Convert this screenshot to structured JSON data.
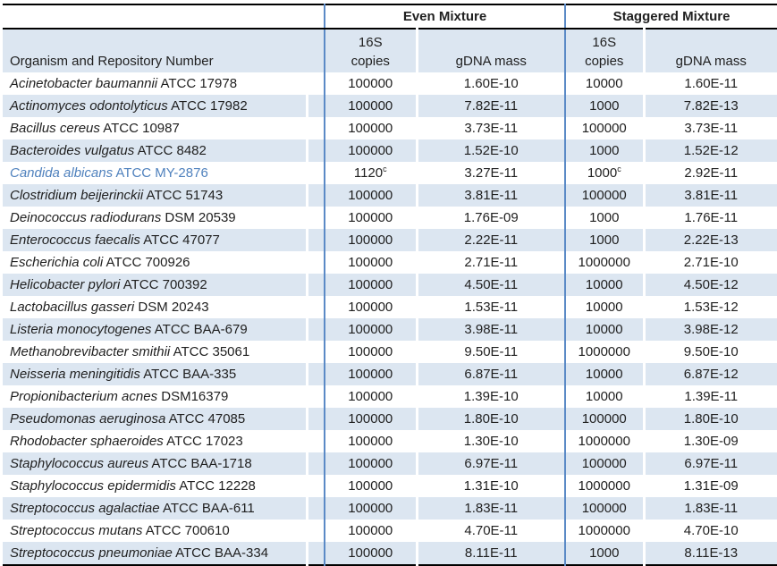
{
  "table": {
    "title_hint": "Mock community composition table",
    "group_headers": {
      "even": "Even Mixture",
      "staggered": "Staggered Mixture"
    },
    "organism_header": "Organism and Repository Number",
    "subheaders": {
      "copies_line1": "16S",
      "copies_line2": "copies",
      "gdna": "gDNA mass"
    },
    "colors": {
      "stripe_blue": "#dce6f1",
      "separator_blue": "#5b8ac6",
      "highlight_text_blue": "#4f81bd",
      "border_black": "#000000"
    },
    "footnote_marker": "c",
    "rows": [
      {
        "organism_italic": "Acinetobacter baumannii",
        "organism_rest": "ATCC 17978",
        "even_copies": "100000",
        "even_gdna": "1.60E-10",
        "stag_copies": "10000",
        "stag_gdna": "1.60E-11"
      },
      {
        "organism_italic": "Actinomyces odontolyticus",
        "organism_rest": "ATCC 17982",
        "even_copies": "100000",
        "even_gdna": "7.82E-11",
        "stag_copies": "1000",
        "stag_gdna": "7.82E-13"
      },
      {
        "organism_italic": "Bacillus cereus",
        "organism_rest": "ATCC 10987",
        "even_copies": "100000",
        "even_gdna": "3.73E-11",
        "stag_copies": "100000",
        "stag_gdna": "3.73E-11"
      },
      {
        "organism_italic": "Bacteroides vulgatus",
        "organism_rest": "ATCC 8482",
        "even_copies": "100000",
        "even_gdna": "1.52E-10",
        "stag_copies": "1000",
        "stag_gdna": "1.52E-12"
      },
      {
        "organism_italic": "Candida albicans",
        "organism_rest": "ATCC MY-2876",
        "even_copies": "1120",
        "even_copies_sup": "c",
        "even_gdna": "3.27E-11",
        "stag_copies": "1000",
        "stag_copies_sup": "c",
        "stag_gdna": "2.92E-11",
        "highlight": true
      },
      {
        "organism_italic": "Clostridium beijerinckii",
        "organism_rest": "ATCC 51743",
        "even_copies": "100000",
        "even_gdna": "3.81E-11",
        "stag_copies": "100000",
        "stag_gdna": "3.81E-11"
      },
      {
        "organism_italic": "Deinococcus radiodurans",
        "organism_rest": "DSM 20539",
        "even_copies": "100000",
        "even_gdna": "1.76E-09",
        "stag_copies": "1000",
        "stag_gdna": "1.76E-11"
      },
      {
        "organism_italic": "Enterococcus faecalis",
        "organism_rest": "ATCC 47077",
        "even_copies": "100000",
        "even_gdna": "2.22E-11",
        "stag_copies": "1000",
        "stag_gdna": "2.22E-13"
      },
      {
        "organism_italic": "Escherichia coli",
        "organism_rest": "ATCC 700926",
        "even_copies": "100000",
        "even_gdna": "2.71E-11",
        "stag_copies": "1000000",
        "stag_gdna": "2.71E-10"
      },
      {
        "organism_italic": "Helicobacter pylori",
        "organism_rest": "ATCC 700392",
        "even_copies": "100000",
        "even_gdna": "4.50E-11",
        "stag_copies": "10000",
        "stag_gdna": "4.50E-12"
      },
      {
        "organism_italic": "Lactobacillus gasseri",
        "organism_rest": "DSM 20243",
        "even_copies": "100000",
        "even_gdna": "1.53E-11",
        "stag_copies": "10000",
        "stag_gdna": "1.53E-12"
      },
      {
        "organism_italic": "Listeria monocytogenes",
        "organism_rest": "ATCC BAA-679",
        "even_copies": "100000",
        "even_gdna": "3.98E-11",
        "stag_copies": "10000",
        "stag_gdna": "3.98E-12"
      },
      {
        "organism_italic": "Methanobrevibacter smithii",
        "organism_rest": "ATCC 35061",
        "even_copies": "100000",
        "even_gdna": "9.50E-11",
        "stag_copies": "1000000",
        "stag_gdna": "9.50E-10"
      },
      {
        "organism_italic": "Neisseria meningitidis",
        "organism_rest": "ATCC BAA-335",
        "even_copies": "100000",
        "even_gdna": "6.87E-11",
        "stag_copies": "10000",
        "stag_gdna": "6.87E-12"
      },
      {
        "organism_italic": "Propionibacterium acnes",
        "organism_rest": "DSM16379",
        "even_copies": "100000",
        "even_gdna": "1.39E-10",
        "stag_copies": "10000",
        "stag_gdna": "1.39E-11"
      },
      {
        "organism_italic": "Pseudomonas aeruginosa",
        "organism_rest": "ATCC 47085",
        "even_copies": "100000",
        "even_gdna": "1.80E-10",
        "stag_copies": "100000",
        "stag_gdna": "1.80E-10"
      },
      {
        "organism_italic": "Rhodobacter sphaeroides",
        "organism_rest": "ATCC 17023",
        "even_copies": "100000",
        "even_gdna": "1.30E-10",
        "stag_copies": "1000000",
        "stag_gdna": "1.30E-09"
      },
      {
        "organism_italic": "Staphylococcus aureus",
        "organism_rest": "ATCC BAA-1718",
        "even_copies": "100000",
        "even_gdna": "6.97E-11",
        "stag_copies": "100000",
        "stag_gdna": "6.97E-11"
      },
      {
        "organism_italic": "Staphylococcus epidermidis",
        "organism_rest": "ATCC 12228",
        "even_copies": "100000",
        "even_gdna": "1.31E-10",
        "stag_copies": "1000000",
        "stag_gdna": "1.31E-09"
      },
      {
        "organism_italic": "Streptococcus agalactiae",
        "organism_rest": "ATCC BAA-611",
        "even_copies": "100000",
        "even_gdna": "1.83E-11",
        "stag_copies": "100000",
        "stag_gdna": "1.83E-11"
      },
      {
        "organism_italic": "Streptococcus mutans",
        "organism_rest": "ATCC 700610",
        "even_copies": "100000",
        "even_gdna": "4.70E-11",
        "stag_copies": "1000000",
        "stag_gdna": "4.70E-10"
      },
      {
        "organism_italic": "Streptococcus pneumoniae",
        "organism_rest": "ATCC BAA-334",
        "even_copies": "100000",
        "even_gdna": "8.11E-11",
        "stag_copies": "1000",
        "stag_gdna": "8.11E-13"
      }
    ]
  }
}
